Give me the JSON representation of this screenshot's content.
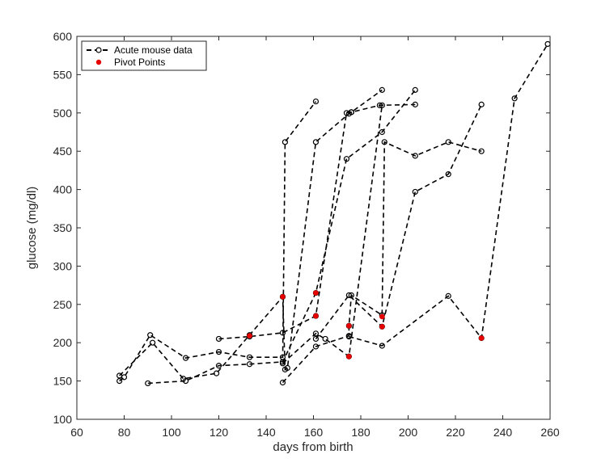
{
  "chart_data": {
    "type": "line",
    "title": "",
    "xlabel": "days from birth",
    "ylabel": "glucose (mg/dl)",
    "xlim": [
      60,
      260
    ],
    "ylim": [
      100,
      600
    ],
    "x_ticks": [
      "60",
      "80",
      "100",
      "120",
      "140",
      "160",
      "180",
      "200",
      "220",
      "240",
      "260"
    ],
    "y_ticks": [
      "100",
      "150",
      "200",
      "250",
      "300",
      "350",
      "400",
      "450",
      "500",
      "550",
      "600"
    ],
    "grid": false,
    "box": true,
    "legend": {
      "position": "top-left",
      "entries": [
        {
          "label": "Acute mouse data",
          "style": "dashed-line-open-circle",
          "color": "#000000"
        },
        {
          "label": "Pivot Points",
          "style": "filled-dot",
          "color": "#e60000"
        }
      ]
    },
    "series": [
      {
        "points": [
          [
            78,
            150
          ],
          [
            80,
            155
          ],
          [
            91,
            210
          ],
          [
            106,
            180
          ],
          [
            120,
            188
          ],
          [
            133,
            181
          ],
          [
            147,
            181
          ],
          [
            148,
            462
          ],
          [
            161,
            515
          ]
        ]
      },
      {
        "points": [
          [
            78,
            157
          ],
          [
            92,
            200
          ],
          [
            105,
            153
          ],
          [
            119,
            160
          ],
          [
            133,
            210
          ],
          [
            147,
            260
          ],
          [
            148,
            165
          ],
          [
            149,
            167
          ],
          [
            161,
            462
          ],
          [
            175,
            499
          ],
          [
            176,
            501
          ],
          [
            189,
            530
          ]
        ]
      },
      {
        "points": [
          [
            90,
            147
          ],
          [
            106,
            150
          ],
          [
            120,
            170
          ],
          [
            133,
            172
          ],
          [
            147,
            175
          ],
          [
            161,
            265
          ],
          [
            174,
            440
          ],
          [
            189,
            475
          ],
          [
            203,
            530
          ]
        ]
      },
      {
        "points": [
          [
            120,
            205
          ],
          [
            133,
            208
          ],
          [
            147,
            213
          ],
          [
            161,
            235
          ],
          [
            174,
            500
          ],
          [
            176,
            501
          ],
          [
            188,
            510
          ],
          [
            203,
            511
          ]
        ]
      },
      {
        "points": [
          [
            147,
            148
          ],
          [
            161,
            195
          ],
          [
            175,
            209
          ],
          [
            175,
            222
          ],
          [
            176,
            262
          ],
          [
            189,
            236
          ],
          [
            190,
            462
          ],
          [
            203,
            444
          ],
          [
            217,
            462
          ],
          [
            231,
            450
          ]
        ]
      },
      {
        "points": [
          [
            147,
            173
          ],
          [
            161,
            212
          ],
          [
            165,
            205
          ],
          [
            175,
            182
          ],
          [
            189,
            510
          ]
        ]
      },
      {
        "points": [
          [
            161,
            205
          ],
          [
            175,
            262
          ],
          [
            189,
            221
          ],
          [
            203,
            397
          ],
          [
            217,
            420
          ],
          [
            231,
            511
          ]
        ]
      },
      {
        "points": [
          [
            175,
            208
          ],
          [
            189,
            196
          ],
          [
            217,
            261
          ],
          [
            231,
            206
          ],
          [
            245,
            519
          ],
          [
            259,
            590
          ]
        ]
      }
    ],
    "pivot_points": [
      [
        133,
        209
      ],
      [
        147,
        260
      ],
      [
        161,
        235
      ],
      [
        161,
        265
      ],
      [
        175,
        182
      ],
      [
        175,
        222
      ],
      [
        189,
        221
      ],
      [
        189,
        234
      ],
      [
        231,
        206
      ]
    ]
  }
}
